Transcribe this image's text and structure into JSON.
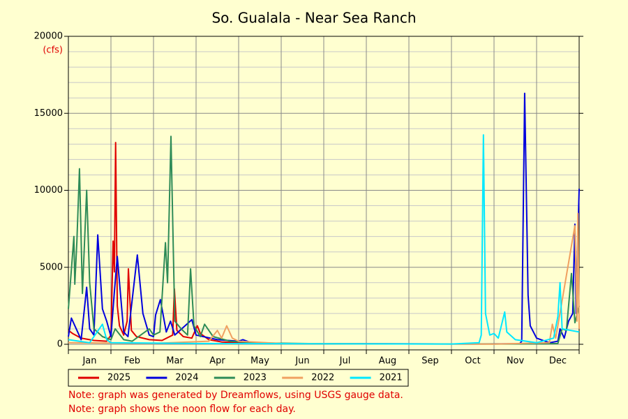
{
  "chart_data": {
    "type": "line",
    "title": "So. Gualala - Near Sea Ranch",
    "y_unit": "(cfs)",
    "categories": [
      "Jan",
      "Feb",
      "Mar",
      "Apr",
      "May",
      "Jun",
      "Jul",
      "Aug",
      "Sep",
      "Oct",
      "Nov",
      "Dec"
    ],
    "xlim": [
      0,
      12
    ],
    "xticks": [
      0,
      1,
      2,
      3,
      4,
      5,
      6,
      7,
      8,
      9,
      10,
      11,
      12
    ],
    "ylim": [
      0,
      20000
    ],
    "yticks": [
      0,
      5000,
      10000,
      15000,
      20000
    ],
    "y_minor_ticks": [
      1000,
      2000,
      3000,
      4000,
      6000,
      7000,
      8000,
      9000,
      11000,
      12000,
      13000,
      14000,
      16000,
      17000,
      18000,
      19000
    ],
    "grid": true,
    "series": [
      {
        "name": "2025",
        "color": "#e00000",
        "x": [
          0,
          0.1,
          0.3,
          0.6,
          0.9,
          1.0,
          1.05,
          1.08,
          1.11,
          1.15,
          1.2,
          1.3,
          1.38,
          1.41,
          1.48,
          1.6,
          1.9,
          2.2,
          2.45,
          2.49,
          2.55,
          2.7,
          2.9,
          3.03,
          3.1,
          3.3,
          3.6,
          4,
          4.5,
          5,
          5.5,
          6,
          6.4
        ],
        "values": [
          900,
          700,
          400,
          250,
          200,
          600,
          6700,
          4700,
          13100,
          2500,
          1200,
          600,
          1500,
          4900,
          900,
          500,
          300,
          250,
          600,
          3600,
          900,
          500,
          400,
          1200,
          700,
          300,
          150,
          100,
          70,
          50,
          40,
          30,
          25
        ]
      },
      {
        "name": "2024",
        "color": "#0000dd",
        "x": [
          0,
          0.07,
          0.3,
          0.43,
          0.5,
          0.6,
          0.69,
          0.8,
          0.9,
          1.0,
          1.08,
          1.15,
          1.3,
          1.4,
          1.62,
          1.75,
          1.9,
          2.0,
          2.05,
          2.16,
          2.3,
          2.4,
          2.5,
          2.9,
          3.0,
          3.5,
          4.0,
          4.1,
          4.3,
          5,
          7,
          9.5,
          10.6,
          10.65,
          10.72,
          10.8,
          10.85,
          11.0,
          11.3,
          11.5,
          11.55,
          11.65,
          11.75,
          11.85,
          11.9,
          11.93,
          11.96,
          12.0
        ],
        "values": [
          500,
          1700,
          300,
          3700,
          1000,
          600,
          7100,
          2300,
          1500,
          500,
          3400,
          5700,
          800,
          500,
          5800,
          2000,
          600,
          500,
          1900,
          2900,
          800,
          1500,
          600,
          1600,
          600,
          300,
          200,
          300,
          100,
          50,
          30,
          20,
          30,
          200,
          16300,
          3200,
          1200,
          400,
          100,
          200,
          1000,
          400,
          1500,
          2000,
          7800,
          2000,
          6000,
          10100
        ]
      },
      {
        "name": "2023",
        "color": "#2e8b57",
        "x": [
          0,
          0.13,
          0.15,
          0.2,
          0.26,
          0.33,
          0.43,
          0.5,
          0.6,
          0.8,
          1.0,
          1.1,
          1.3,
          1.5,
          1.9,
          2.0,
          2.15,
          2.28,
          2.33,
          2.41,
          2.5,
          2.65,
          2.8,
          2.87,
          2.95,
          3.1,
          3.2,
          3.4,
          3.8,
          4.5,
          6,
          10,
          11.2,
          11.5,
          11.6,
          11.7,
          11.82,
          11.9,
          12
        ],
        "values": [
          2300,
          7000,
          3900,
          6700,
          11400,
          3300,
          10000,
          4000,
          1000,
          500,
          300,
          1000,
          300,
          200,
          1000,
          600,
          800,
          6600,
          4000,
          13500,
          1500,
          1000,
          600,
          4900,
          1200,
          500,
          1300,
          500,
          200,
          80,
          30,
          20,
          30,
          50,
          1000,
          900,
          4600,
          1400,
          2500
        ]
      },
      {
        "name": "2022",
        "color": "#f0a060",
        "x": [
          0,
          1,
          2,
          3.3,
          3.5,
          3.6,
          3.72,
          3.85,
          4,
          5,
          10,
          11.3,
          11.37,
          11.45,
          11.9,
          11.95,
          11.97,
          12.0
        ],
        "values": [
          100,
          80,
          60,
          200,
          900,
          400,
          1200,
          400,
          200,
          50,
          10,
          100,
          1300,
          400,
          7700,
          1500,
          8500,
          1000
        ]
      },
      {
        "name": "2021",
        "color": "#00e8ff",
        "x": [
          0,
          0.5,
          0.8,
          0.9,
          1,
          3,
          9,
          9.65,
          9.7,
          9.75,
          9.8,
          9.9,
          10,
          10.1,
          10.25,
          10.3,
          10.5,
          11,
          11.4,
          11.5,
          11.55,
          11.6,
          12
        ],
        "values": [
          300,
          100,
          1300,
          300,
          100,
          50,
          20,
          100,
          600,
          13600,
          2000,
          600,
          700,
          400,
          2100,
          800,
          300,
          100,
          400,
          1800,
          4000,
          1000,
          800
        ]
      }
    ],
    "notes": [
      "Note: graph was generated by Dreamflows, using USGS gauge data.",
      "Note: graph shows the noon flow for each day."
    ]
  }
}
